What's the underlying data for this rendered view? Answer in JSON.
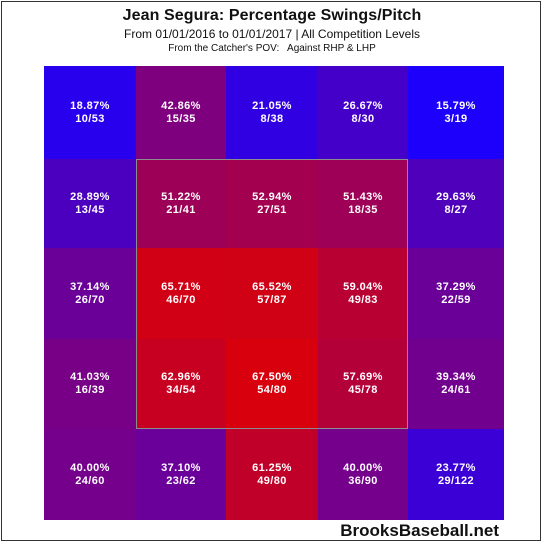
{
  "header": {
    "title": "Jean Segura: Percentage Swings/Pitch",
    "subtitle": "From 01/01/2016 to 01/01/2017 | All Competition Levels",
    "pov_note": "From the Catcher's POV:   Against RHP & LHP"
  },
  "footer": {
    "brand": "BrooksBaseball.net"
  },
  "colors": {
    "low": "#1a00ff",
    "high": "#e00000",
    "zone_border": "#8c8c8c"
  },
  "chart_data": {
    "type": "heatmap",
    "title": "Jean Segura: Percentage Swings/Pitch",
    "rows": 5,
    "cols": 5,
    "strike_zone": {
      "rows": [
        1,
        3
      ],
      "cols": [
        1,
        3
      ]
    },
    "cells": [
      [
        {
          "pct": "18.87%",
          "frac": "10/53"
        },
        {
          "pct": "42.86%",
          "frac": "15/35"
        },
        {
          "pct": "21.05%",
          "frac": "8/38"
        },
        {
          "pct": "26.67%",
          "frac": "8/30"
        },
        {
          "pct": "15.79%",
          "frac": "3/19"
        }
      ],
      [
        {
          "pct": "28.89%",
          "frac": "13/45"
        },
        {
          "pct": "51.22%",
          "frac": "21/41"
        },
        {
          "pct": "52.94%",
          "frac": "27/51"
        },
        {
          "pct": "51.43%",
          "frac": "18/35"
        },
        {
          "pct": "29.63%",
          "frac": "8/27"
        }
      ],
      [
        {
          "pct": "37.14%",
          "frac": "26/70"
        },
        {
          "pct": "65.71%",
          "frac": "46/70"
        },
        {
          "pct": "65.52%",
          "frac": "57/87"
        },
        {
          "pct": "59.04%",
          "frac": "49/83"
        },
        {
          "pct": "37.29%",
          "frac": "22/59"
        }
      ],
      [
        {
          "pct": "41.03%",
          "frac": "16/39"
        },
        {
          "pct": "62.96%",
          "frac": "34/54"
        },
        {
          "pct": "67.50%",
          "frac": "54/80"
        },
        {
          "pct": "57.69%",
          "frac": "45/78"
        },
        {
          "pct": "39.34%",
          "frac": "24/61"
        }
      ],
      [
        {
          "pct": "40.00%",
          "frac": "24/60"
        },
        {
          "pct": "37.10%",
          "frac": "23/62"
        },
        {
          "pct": "61.25%",
          "frac": "49/80"
        },
        {
          "pct": "40.00%",
          "frac": "36/90"
        },
        {
          "pct": "23.77%",
          "frac": "29/122"
        }
      ]
    ]
  }
}
